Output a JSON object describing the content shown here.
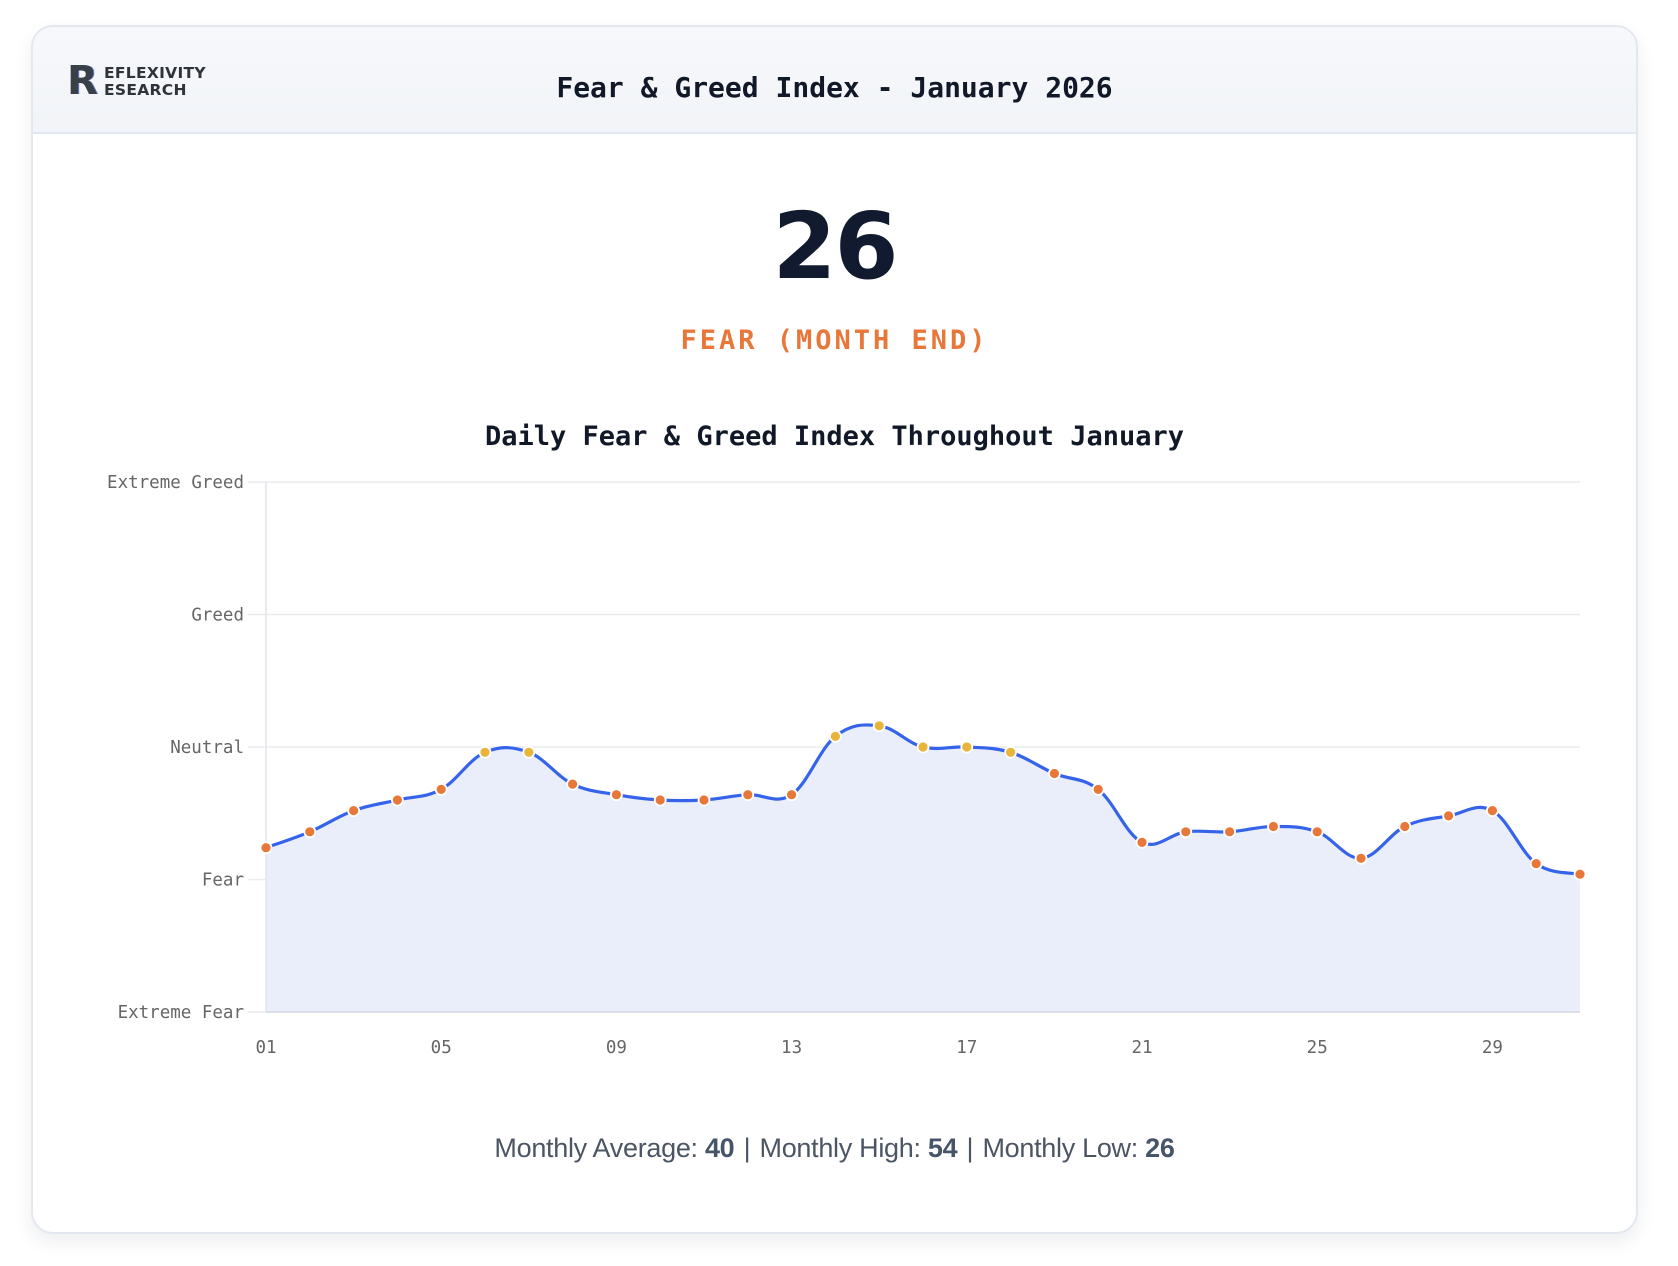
{
  "header": {
    "logo_initial": "R",
    "logo_line1": "EFLEXIVITY",
    "logo_line2": "ESEARCH",
    "title": "Fear & Greed Index - January 2026"
  },
  "summary": {
    "value": "26",
    "label": "FEAR (MONTH END)",
    "label_color": "#e8773a"
  },
  "footer": {
    "average_label": "Monthly Average:",
    "average_value": "40",
    "separator": "|",
    "high_label": "Monthly High:",
    "high_value": "54",
    "low_label": "Monthly Low:",
    "low_value": "26"
  },
  "chart_data": {
    "type": "area",
    "title": "Daily Fear & Greed Index Throughout January",
    "xlabel": "",
    "ylabel": "",
    "x": [
      1,
      2,
      3,
      4,
      5,
      6,
      7,
      8,
      9,
      10,
      11,
      12,
      13,
      14,
      15,
      16,
      17,
      18,
      19,
      20,
      21,
      22,
      23,
      24,
      25,
      26,
      27,
      28,
      29,
      30,
      31
    ],
    "x_ticks": [
      "01",
      "05",
      "09",
      "13",
      "17",
      "21",
      "25",
      "29"
    ],
    "x_tick_values": [
      1,
      5,
      9,
      13,
      17,
      21,
      25,
      29
    ],
    "y_ticks": [
      {
        "value": 0,
        "label": "Extreme Fear"
      },
      {
        "value": 25,
        "label": "Fear"
      },
      {
        "value": 50,
        "label": "Neutral"
      },
      {
        "value": 75,
        "label": "Greed"
      },
      {
        "value": 100,
        "label": "Extreme Greed"
      }
    ],
    "ylim": [
      0,
      100
    ],
    "xlim": [
      1,
      31
    ],
    "grid": true,
    "series": [
      {
        "name": "Fear & Greed Index",
        "values": [
          31,
          34,
          38,
          40,
          42,
          49,
          49,
          43,
          41,
          40,
          40,
          41,
          41,
          52,
          54,
          50,
          50,
          49,
          45,
          42,
          32,
          34,
          34,
          35,
          34,
          29,
          35,
          37,
          38,
          28,
          26
        ],
        "line_color": "#3563e9",
        "fill_color": "#eaeefa"
      }
    ],
    "marker_colors": {
      "fear": "#e8773a",
      "neutral": "#e8b43a"
    },
    "neutral_threshold": 46
  }
}
